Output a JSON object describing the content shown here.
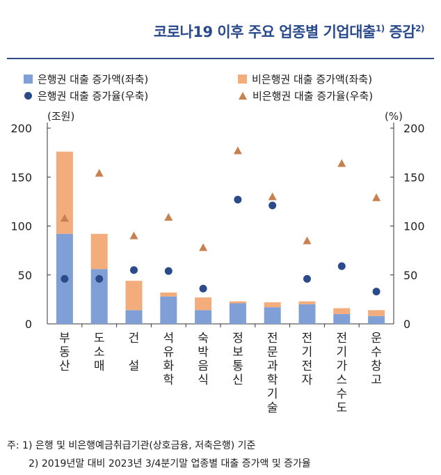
{
  "title": {
    "text": "코로나19 이후 주요 업종별 기업대출",
    "sup1": "1)",
    "text2": " 증감",
    "sup2": "2)"
  },
  "legend": [
    {
      "label": "은행권 대출 증가액(좌축)",
      "symbol": "bar",
      "color": "#7f9fd6"
    },
    {
      "label": "비은행권 대출 증가액(좌축)",
      "symbol": "bar",
      "color": "#f3ad7c"
    },
    {
      "label": "은행권 대출 증가율(우축)",
      "symbol": "circle",
      "color": "#2a4a8a"
    },
    {
      "label": "비은행권 대출 증가율(우축)",
      "symbol": "triangle",
      "color": "#c7804f"
    }
  ],
  "notes": [
    "주: 1) 은행 및 비은행예금취급기관(상호금융, 저축은행) 기준",
    "2) 2019년말 대비 2023년 3/4분기말 업종별 대출 증가액 및 증가율"
  ],
  "chart_data": {
    "type": "bar",
    "stacked": true,
    "categories": [
      "부동산",
      "도소매",
      "건 설",
      "석유화학",
      "숙박음식",
      "정보통신",
      "전문과학기술",
      "전기전자",
      "전기가스수도",
      "운수창고"
    ],
    "ylabel_left": "(조원)",
    "ylabel_right": "(%)",
    "ylim_left": [
      0,
      200
    ],
    "ylim_right": [
      0,
      200
    ],
    "yticks_left": [
      0,
      50,
      100,
      150,
      200
    ],
    "yticks_right": [
      0,
      50,
      100,
      150,
      200
    ],
    "series": [
      {
        "name": "은행권 대출 증가액(좌축)",
        "type": "bar",
        "axis": "left",
        "color": "#7f9fd6",
        "values": [
          92,
          56,
          14,
          28,
          14,
          21,
          17,
          20,
          10,
          8
        ]
      },
      {
        "name": "비은행권 대출 증가액(좌축)",
        "type": "bar",
        "axis": "left",
        "color": "#f3ad7c",
        "values": [
          84,
          36,
          30,
          4,
          13,
          2,
          5,
          3,
          6,
          6
        ]
      },
      {
        "name": "은행권 대출 증가율(우축)",
        "type": "scatter",
        "marker": "circle",
        "axis": "right",
        "color": "#2a4a8a",
        "values": [
          46,
          46,
          55,
          54,
          36,
          127,
          121,
          46,
          59,
          33
        ]
      },
      {
        "name": "비은행권 대출 증가율(우축)",
        "type": "scatter",
        "marker": "triangle",
        "axis": "right",
        "color": "#c7804f",
        "values": [
          108,
          154,
          90,
          109,
          78,
          177,
          130,
          85,
          164,
          129
        ]
      }
    ]
  }
}
